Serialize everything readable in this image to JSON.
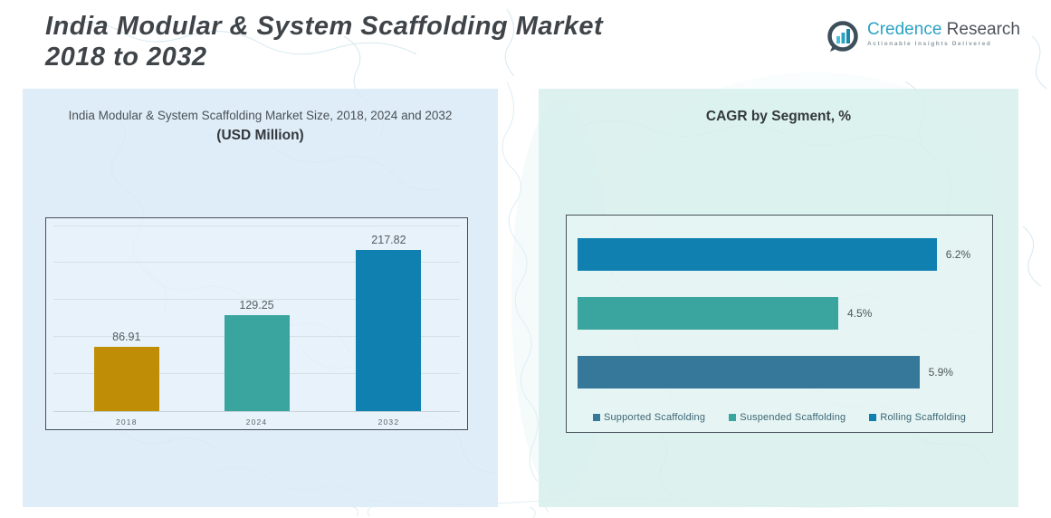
{
  "page": {
    "title_line1": "India Modular & System Scaffolding Market",
    "title_line2": "2018 to 2032"
  },
  "logo": {
    "brand_primary": "Credence",
    "brand_secondary": "Research",
    "tagline": "Actionable Insights Delivered"
  },
  "colors": {
    "gold": "#bf8e06",
    "teal": "#3aa49f",
    "blue": "#1080b0",
    "slate_blue": "#35789a",
    "title_text": "#3f4449",
    "panel_left_bg": "#d8e9f6",
    "panel_right_bg": "#d6efec",
    "map_line": "#b5d6e2"
  },
  "chart_data": [
    {
      "type": "bar",
      "title": "India Modular & System Scaffolding Market Size, 2018, 2024 and 2032",
      "subtitle": "(USD Million)",
      "categories": [
        "2018",
        "2024",
        "2032"
      ],
      "values": [
        86.91,
        129.25,
        217.82
      ],
      "value_labels": [
        "86.91",
        "129.25",
        "217.82"
      ],
      "bar_colors": [
        "#bf8e06",
        "#3aa49f",
        "#1080b0"
      ],
      "xlabel": "",
      "ylabel": "",
      "ylim": [
        0,
        250
      ],
      "grid_step": 50,
      "grid": true,
      "legend_position": "none"
    },
    {
      "type": "bar",
      "orientation": "horizontal",
      "title": "CAGR by Segment, %",
      "categories_top_to_bottom": [
        "Rolling Scaffolding",
        "Suspended Scaffolding",
        "Supported Scaffolding"
      ],
      "values_top_to_bottom": [
        6.2,
        4.5,
        5.9
      ],
      "value_labels_top_to_bottom": [
        "6.2%",
        "4.5%",
        "5.9%"
      ],
      "bar_colors_top_to_bottom": [
        "#1080b0",
        "#3aa49f",
        "#35789a"
      ],
      "xlabel": "",
      "ylabel": "",
      "xlim": [
        0,
        7.2
      ],
      "grid": false,
      "legend_position": "bottom",
      "legend": [
        {
          "label": "Supported Scaffolding",
          "color": "#35789a"
        },
        {
          "label": "Suspended Scaffolding",
          "color": "#3aa49f"
        },
        {
          "label": "Rolling Scaffolding",
          "color": "#1080b0"
        }
      ]
    }
  ]
}
